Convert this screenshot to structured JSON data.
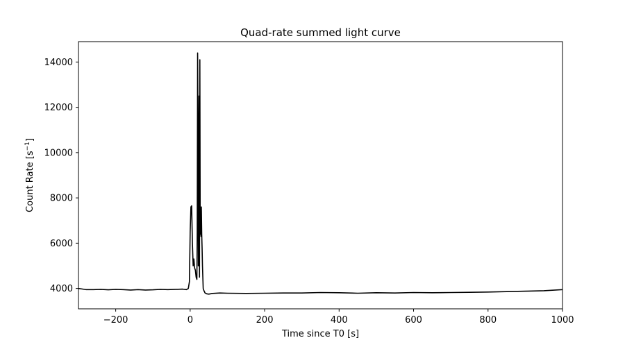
{
  "chart_data": {
    "type": "line",
    "title": "Quad-rate summed light curve",
    "xlabel": "Time since T0 [s]",
    "ylabel_main": "Count Rate [s",
    "ylabel_sup": "−1",
    "ylabel_close": "]",
    "xlim": [
      -300,
      1000
    ],
    "ylim": [
      3100,
      14900
    ],
    "xticks": [
      -200,
      0,
      200,
      400,
      600,
      800,
      1000
    ],
    "xtick_labels": [
      "−200",
      "0",
      "200",
      "400",
      "600",
      "800",
      "1000"
    ],
    "yticks": [
      4000,
      6000,
      8000,
      10000,
      12000,
      14000
    ],
    "ytick_labels": [
      "4000",
      "6000",
      "8000",
      "10000",
      "12000",
      "14000"
    ],
    "grid": false,
    "series": [
      {
        "color": "#000000",
        "x": [
          -300,
          -280,
          -260,
          -240,
          -220,
          -200,
          -180,
          -160,
          -140,
          -120,
          -100,
          -80,
          -60,
          -40,
          -20,
          -10,
          -5,
          -2,
          0,
          2,
          4,
          6,
          8,
          10,
          12,
          14,
          16,
          18,
          19,
          20,
          21,
          22,
          23,
          24,
          25,
          26,
          27,
          28,
          29,
          30,
          31,
          32,
          33,
          34,
          35,
          37,
          40,
          45,
          50,
          60,
          80,
          100,
          150,
          200,
          250,
          300,
          350,
          400,
          450,
          500,
          550,
          600,
          650,
          700,
          750,
          800,
          850,
          900,
          950,
          1000
        ],
        "y": [
          4000,
          3950,
          3950,
          3960,
          3940,
          3960,
          3950,
          3930,
          3950,
          3930,
          3940,
          3960,
          3950,
          3960,
          3970,
          3950,
          4000,
          4300,
          6500,
          7600,
          7650,
          6000,
          5000,
          5300,
          4900,
          4800,
          4500,
          4400,
          6500,
          14400,
          11000,
          5000,
          9000,
          12500,
          4500,
          14100,
          6400,
          7000,
          6300,
          7600,
          6400,
          5800,
          5000,
          4500,
          4000,
          3900,
          3800,
          3760,
          3750,
          3780,
          3800,
          3790,
          3780,
          3790,
          3800,
          3800,
          3820,
          3810,
          3790,
          3810,
          3800,
          3820,
          3810,
          3820,
          3830,
          3840,
          3860,
          3880,
          3900,
          3950
        ]
      }
    ]
  }
}
